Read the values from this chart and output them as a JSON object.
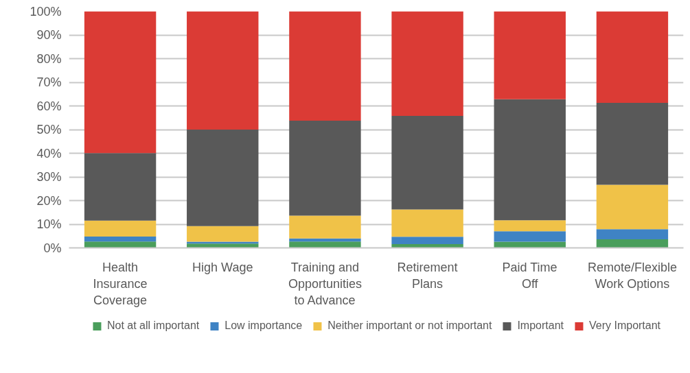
{
  "chart_data": {
    "type": "bar",
    "stacked": true,
    "categories": [
      "Health Insurance Coverage",
      "High Wage",
      "Training and Opportunities to Advance",
      "Retirement Plans",
      "Paid Time Off",
      "Remote/Flexible Work Options"
    ],
    "series": [
      {
        "name": "Not at all important",
        "color": "#4a9e5c",
        "values": [
          2.7,
          1.8,
          2.7,
          1.6,
          2.6,
          3.6
        ]
      },
      {
        "name": "Low importance",
        "color": "#3f83c4",
        "values": [
          2.1,
          0.8,
          1.3,
          3.1,
          4.4,
          4.3
        ]
      },
      {
        "name": "Neither important or not important",
        "color": "#f0c248",
        "values": [
          6.7,
          6.6,
          9.6,
          11.5,
          4.7,
          18.8
        ]
      },
      {
        "name": "Important",
        "color": "#595959",
        "values": [
          28.6,
          40.8,
          40.2,
          39.6,
          51.1,
          34.6
        ]
      },
      {
        "name": "Very Important",
        "color": "#db3b35",
        "values": [
          59.9,
          50.0,
          46.2,
          44.2,
          37.2,
          38.7
        ]
      }
    ],
    "ylim": [
      0,
      100
    ],
    "yticks": [
      {
        "value": 0,
        "label": "0%"
      },
      {
        "value": 10,
        "label": "10%"
      },
      {
        "value": 20,
        "label": "20%"
      },
      {
        "value": 30,
        "label": "30%"
      },
      {
        "value": 40,
        "label": "40%"
      },
      {
        "value": 50,
        "label": "50%"
      },
      {
        "value": 60,
        "label": "60%"
      },
      {
        "value": 70,
        "label": "70%"
      },
      {
        "value": 80,
        "label": "80%"
      },
      {
        "value": 90,
        "label": "90%"
      },
      {
        "value": 100,
        "label": "100%"
      }
    ],
    "grid": "y",
    "legend": "bottom"
  }
}
